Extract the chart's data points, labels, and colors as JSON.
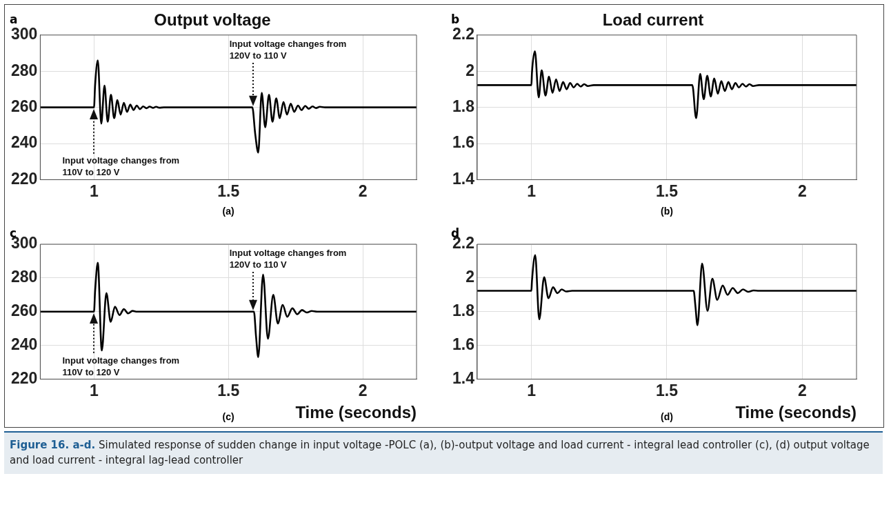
{
  "chart_data": [
    {
      "type": "line",
      "title": "Output voltage",
      "xlim": [
        0.8,
        2.2
      ],
      "xticks": [
        1,
        1.5,
        2
      ],
      "ylim": [
        220,
        300
      ],
      "yticks": [
        220,
        240,
        260,
        280,
        300
      ],
      "grid": true,
      "legend": false,
      "marker": "none",
      "line_style": "solid",
      "annotations": [
        "a",
        "(a)",
        "Input voltage changes from\n110V to 120 V",
        "Input voltage changes from\n120V to 110 V"
      ],
      "series": [
        {
          "color": "#000000",
          "x": [
            0.8,
            1.0,
            1.004,
            1.014,
            1.027,
            1.039,
            1.051,
            1.063,
            1.075,
            1.087,
            1.099,
            1.111,
            1.123,
            1.135,
            1.147,
            1.159,
            1.171,
            1.183,
            1.195,
            1.207,
            1.219,
            1.231,
            1.243,
            1.26,
            1.589,
            1.6,
            1.611,
            1.624,
            1.637,
            1.651,
            1.664,
            1.678,
            1.691,
            1.705,
            1.718,
            1.732,
            1.745,
            1.759,
            1.772,
            1.786,
            1.799,
            1.813,
            1.826,
            1.84,
            1.86,
            2.2
          ],
          "values": [
            260,
            260,
            272,
            286,
            251,
            272,
            252,
            267,
            254,
            264,
            256,
            262.5,
            257.5,
            261.5,
            258.5,
            261,
            259,
            260.5,
            259.5,
            260.4,
            259.7,
            260.3,
            259.8,
            260,
            260,
            245,
            235,
            268,
            249,
            267,
            252,
            265,
            254,
            263,
            256,
            262,
            257.5,
            261,
            258.5,
            260.8,
            259.2,
            260.5,
            259.6,
            260.3,
            260,
            260
          ]
        }
      ]
    },
    {
      "type": "line",
      "title": "Load current",
      "xlim": [
        0.8,
        2.2
      ],
      "xticks": [
        1,
        1.5,
        2
      ],
      "ylim": [
        1.4,
        2.2
      ],
      "yticks": [
        1.4,
        1.6,
        1.8,
        2,
        2.2
      ],
      "grid": true,
      "legend": false,
      "marker": "none",
      "line_style": "solid",
      "annotations": [
        "b",
        "(b)"
      ],
      "series": [
        {
          "color": "#000000",
          "x": [
            0.8,
            1.0,
            1.002,
            1.013,
            1.027,
            1.038,
            1.052,
            1.065,
            1.078,
            1.091,
            1.104,
            1.117,
            1.13,
            1.143,
            1.156,
            1.169,
            1.182,
            1.195,
            1.208,
            1.23,
            1.594,
            1.608,
            1.623,
            1.636,
            1.649,
            1.662,
            1.675,
            1.688,
            1.701,
            1.714,
            1.727,
            1.74,
            1.753,
            1.766,
            1.779,
            1.792,
            1.805,
            1.818,
            1.84,
            2.2
          ],
          "values": [
            1.923,
            1.923,
            1.99,
            2.11,
            1.855,
            2.005,
            1.865,
            1.97,
            1.88,
            1.955,
            1.89,
            1.94,
            1.9,
            1.935,
            1.91,
            1.93,
            1.915,
            1.928,
            1.918,
            1.923,
            1.923,
            1.74,
            1.985,
            1.845,
            1.975,
            1.86,
            1.96,
            1.875,
            1.945,
            1.89,
            1.94,
            1.9,
            1.935,
            1.91,
            1.93,
            1.915,
            1.928,
            1.918,
            1.923,
            1.923
          ]
        }
      ]
    },
    {
      "type": "line",
      "xlabel": "Time (seconds)",
      "xlim": [
        0.8,
        2.2
      ],
      "xticks": [
        1,
        1.5,
        2
      ],
      "ylim": [
        220,
        300
      ],
      "yticks": [
        220,
        240,
        260,
        280,
        300
      ],
      "grid": true,
      "legend": false,
      "marker": "none",
      "line_style": "solid",
      "annotations": [
        "c",
        "(c)",
        "Input voltage changes from\n110V to 120 V",
        "Input voltage changes from\n120V to 110 V"
      ],
      "series": [
        {
          "color": "#000000",
          "x": [
            0.8,
            1.0,
            1.004,
            1.014,
            1.029,
            1.046,
            1.062,
            1.078,
            1.095,
            1.111,
            1.127,
            1.143,
            1.16,
            1.595,
            1.603,
            1.611,
            1.629,
            1.647,
            1.667,
            1.684,
            1.702,
            1.719,
            1.738,
            1.756,
            1.774,
            1.792,
            1.81,
            1.83,
            2.2
          ],
          "values": [
            260,
            260,
            272,
            289,
            237,
            271,
            254,
            263,
            258,
            261.5,
            259,
            260.5,
            260,
            260,
            245,
            233,
            282,
            244,
            270,
            253,
            264,
            257,
            262,
            258.5,
            261,
            259.5,
            260.4,
            260,
            260
          ]
        }
      ]
    },
    {
      "type": "line",
      "xlabel": "Time (seconds)",
      "xlim": [
        0.8,
        2.2
      ],
      "xticks": [
        1,
        1.5,
        2
      ],
      "ylim": [
        1.4,
        2.2
      ],
      "yticks": [
        1.4,
        1.6,
        1.8,
        2,
        2.2
      ],
      "grid": true,
      "legend": false,
      "marker": "none",
      "line_style": "solid",
      "annotations": [
        "d",
        "(d)",
        "Figure 16. a-d.",
        "Simulated response of sudden change in input voltage -POLC (a), (b)-output voltage and load current - integral lead controller (c), (d) output voltage and load current - integral lag-lead controller"
      ],
      "series": [
        {
          "color": "#000000",
          "x": [
            0.8,
            1.0,
            1.002,
            1.014,
            1.029,
            1.047,
            1.063,
            1.08,
            1.096,
            1.112,
            1.128,
            1.15,
            1.599,
            1.605,
            1.613,
            1.63,
            1.65,
            1.668,
            1.686,
            1.706,
            1.724,
            1.743,
            1.762,
            1.781,
            1.8,
            1.82,
            1.84,
            2.2
          ],
          "values": [
            1.924,
            1.924,
            1.98,
            2.135,
            1.755,
            2.005,
            1.88,
            1.945,
            1.91,
            1.932,
            1.92,
            1.924,
            1.924,
            1.84,
            1.72,
            2.085,
            1.805,
            1.995,
            1.87,
            1.955,
            1.9,
            1.94,
            1.91,
            1.932,
            1.918,
            1.926,
            1.924,
            1.924
          ]
        }
      ]
    }
  ]
}
